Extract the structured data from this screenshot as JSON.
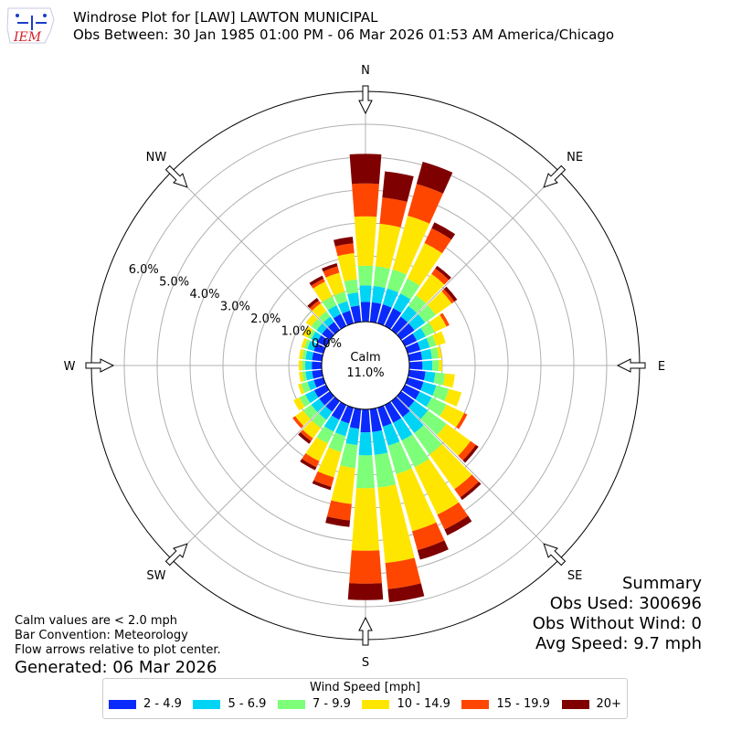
{
  "header": {
    "title": "Windrose Plot for [LAW] LAWTON MUNICIPAL",
    "subtitle": "Obs Between: 30 Jan 1985 01:00 PM - 06 Mar 2026 01:53 AM America/Chicago",
    "logo_text": "IEM"
  },
  "summary": {
    "heading": "Summary",
    "obs_used": "Obs Used: 300696",
    "obs_without_wind": "Obs Without Wind: 0",
    "avg_speed": "Avg Speed: 9.7 mph"
  },
  "notes": {
    "calm_note": "Calm values are < 2.0 mph",
    "bar_convention": "Bar Convention: Meteorology",
    "flow_arrows": "Flow arrows relative to plot center.",
    "generated": "Generated: 06 Mar 2026"
  },
  "legend": {
    "title": "Wind Speed [mph]"
  },
  "chart_data": {
    "type": "bar",
    "projection": "polar",
    "title": "",
    "calm_label": "Calm",
    "calm_value": "11.0%",
    "radial_labels": [
      "0.0%",
      "1.0%",
      "2.0%",
      "3.0%",
      "4.0%",
      "5.0%",
      "6.0%"
    ],
    "radial_max": 7.0,
    "directions": [
      "N",
      "NNE",
      "NE",
      "ENE",
      "E",
      "ESE",
      "SE",
      "SSE",
      "S",
      "SSW",
      "SW",
      "WSW",
      "W",
      "WNW",
      "NW",
      "NNW"
    ],
    "compass_labels": [
      "N",
      "NE",
      "E",
      "SE",
      "S",
      "SW",
      "W",
      "NW"
    ],
    "direction_degrees": [
      0,
      10,
      20,
      30,
      40,
      50,
      60,
      70,
      80,
      90,
      100,
      110,
      120,
      130,
      140,
      150,
      160,
      170,
      180,
      190,
      200,
      210,
      220,
      230,
      240,
      250,
      260,
      270,
      280,
      290,
      300,
      310,
      320,
      330,
      340,
      350
    ],
    "speed_bins": [
      {
        "label": "2 - 4.9",
        "color": "#0a2afc"
      },
      {
        "label": "5 - 6.9",
        "color": "#00d4f5"
      },
      {
        "label": "7 - 9.9",
        "color": "#7dff7a"
      },
      {
        "label": "10 - 14.9",
        "color": "#ffe600"
      },
      {
        "label": "15 - 19.9",
        "color": "#ff4600"
      },
      {
        "label": "20+",
        "color": "#7f0000"
      }
    ],
    "series": [
      {
        "name": "2 - 4.9",
        "values": [
          0.6,
          0.6,
          0.6,
          0.6,
          0.5,
          0.5,
          0.4,
          0.4,
          0.4,
          0.4,
          0.5,
          0.5,
          0.5,
          0.5,
          0.6,
          0.6,
          0.6,
          0.7,
          0.7,
          0.6,
          0.5,
          0.5,
          0.4,
          0.4,
          0.4,
          0.3,
          0.3,
          0.3,
          0.3,
          0.3,
          0.3,
          0.3,
          0.3,
          0.4,
          0.4,
          0.5
        ]
      },
      {
        "name": "5 - 6.9",
        "values": [
          0.5,
          0.5,
          0.5,
          0.5,
          0.4,
          0.4,
          0.3,
          0.3,
          0.3,
          0.3,
          0.3,
          0.4,
          0.4,
          0.5,
          0.6,
          0.6,
          0.6,
          0.7,
          0.7,
          0.5,
          0.4,
          0.4,
          0.3,
          0.3,
          0.3,
          0.2,
          0.2,
          0.2,
          0.2,
          0.2,
          0.2,
          0.2,
          0.2,
          0.3,
          0.3,
          0.4
        ]
      },
      {
        "name": "7 - 9.9",
        "values": [
          0.6,
          0.6,
          0.6,
          0.5,
          0.4,
          0.4,
          0.3,
          0.2,
          0.2,
          0.2,
          0.3,
          0.4,
          0.5,
          0.7,
          0.8,
          0.9,
          0.9,
          1.0,
          1.0,
          0.7,
          0.5,
          0.4,
          0.3,
          0.3,
          0.2,
          0.2,
          0.1,
          0.1,
          0.1,
          0.1,
          0.1,
          0.2,
          0.2,
          0.3,
          0.3,
          0.4
        ]
      },
      {
        "name": "10 - 14.9",
        "values": [
          1.5,
          1.3,
          1.7,
          1.2,
          0.8,
          0.6,
          0.4,
          0.3,
          0.1,
          0.1,
          0.3,
          0.4,
          0.6,
          0.9,
          1.3,
          1.6,
          1.8,
          2.3,
          1.9,
          1.1,
          0.8,
          0.6,
          0.4,
          0.3,
          0.2,
          0.1,
          0.1,
          0.1,
          0.1,
          0.1,
          0.2,
          0.2,
          0.3,
          0.5,
          0.6,
          0.8
        ]
      },
      {
        "name": "15 - 19.9",
        "values": [
          1.0,
          0.8,
          1.0,
          0.5,
          0.2,
          0.1,
          0.1,
          0.0,
          0.0,
          0.0,
          0.0,
          0.0,
          0.1,
          0.2,
          0.3,
          0.5,
          0.6,
          0.8,
          1.0,
          0.5,
          0.3,
          0.2,
          0.1,
          0.1,
          0.0,
          0.0,
          0.0,
          0.0,
          0.0,
          0.0,
          0.0,
          0.0,
          0.1,
          0.1,
          0.2,
          0.3
        ]
      },
      {
        "name": "20+",
        "values": [
          0.9,
          0.8,
          0.7,
          0.2,
          0.1,
          0.1,
          0.0,
          0.0,
          0.0,
          0.0,
          0.0,
          0.0,
          0.0,
          0.1,
          0.1,
          0.2,
          0.3,
          0.4,
          0.5,
          0.2,
          0.1,
          0.1,
          0.1,
          0.0,
          0.0,
          0.0,
          0.0,
          0.0,
          0.0,
          0.0,
          0.0,
          0.0,
          0.1,
          0.1,
          0.1,
          0.2
        ]
      }
    ]
  }
}
